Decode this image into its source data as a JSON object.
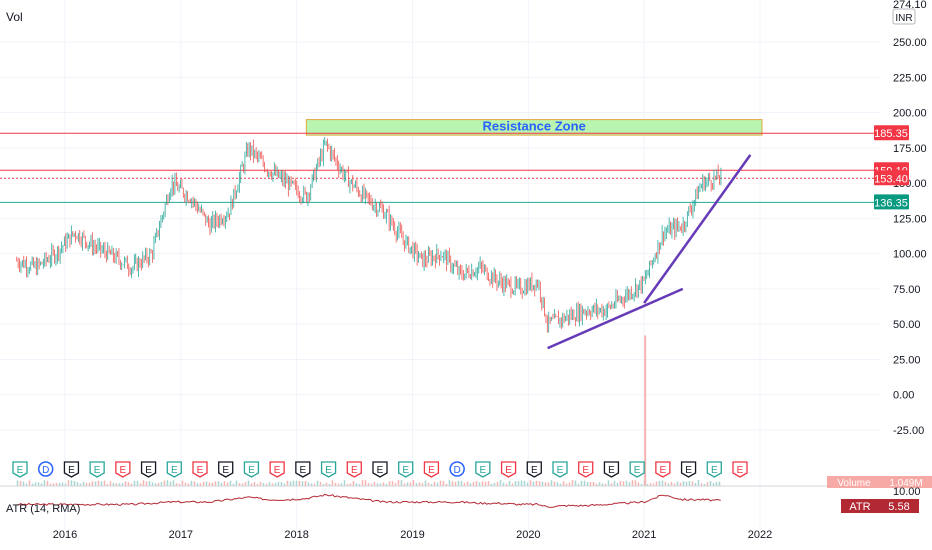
{
  "header": {
    "vol_label": "Vol"
  },
  "price_axis": {
    "top_label": "274.10",
    "currency": "INR",
    "ticks": [
      "250.00",
      "225.00",
      "200.00",
      "175.00",
      "150.00",
      "125.00",
      "100.00",
      "75.00",
      "50.00",
      "25.00",
      "0.00",
      "-25.00"
    ]
  },
  "levels": [
    {
      "name": "resistance-top",
      "value": 185.35,
      "label": "185.35",
      "color": "#f23645",
      "badge_color": "#f23645",
      "style": "solid"
    },
    {
      "name": "price-159",
      "value": 159.1,
      "label": "159.10",
      "color": "#f23645",
      "badge_color": "#f23645",
      "style": "solid"
    },
    {
      "name": "price-153",
      "value": 153.4,
      "label": "153.40",
      "color": "#f23645",
      "badge_color": "#f23645",
      "style": "dotted"
    },
    {
      "name": "support",
      "value": 136.35,
      "label": "136.35",
      "color": "#22ab94",
      "badge_color": "#089981",
      "style": "solid"
    }
  ],
  "resistance_zone": {
    "label": "Resistance Zone",
    "fill": "#b9f4b0",
    "border": "#e0a83c",
    "text_color": "#2962ff"
  },
  "volume": {
    "label": "Volume",
    "value": "1.049M"
  },
  "atr": {
    "label": "ATR (14, RMA)",
    "axis_value": "10.00",
    "badge_label": "ATR",
    "badge_value": "5.58",
    "color": "#b22833"
  },
  "time_axis": {
    "labels": [
      "2016",
      "2017",
      "2018",
      "2019",
      "2020",
      "2021",
      "2022"
    ]
  },
  "event_markers": [
    "E",
    "D",
    "E",
    "E",
    "E",
    "E",
    "E",
    "E",
    "E",
    "E",
    "E",
    "E",
    "E",
    "E",
    "E",
    "E",
    "E",
    "D",
    "E",
    "E",
    "E",
    "E",
    "E",
    "E",
    "E",
    "E",
    "E",
    "E",
    "E"
  ],
  "colors": {
    "up": "#26a69a",
    "down": "#ef5350",
    "trendline": "#673ab7",
    "grid": "#f0f3fa",
    "axis_text": "#131722"
  },
  "chart_data": {
    "type": "line",
    "title": "",
    "x": [
      "2015-08",
      "2015-10",
      "2015-12",
      "2016-02",
      "2016-04",
      "2016-06",
      "2016-08",
      "2016-10",
      "2016-12",
      "2017-02",
      "2017-04",
      "2017-06",
      "2017-08",
      "2017-10",
      "2017-12",
      "2018-02",
      "2018-04",
      "2018-06",
      "2018-08",
      "2018-10",
      "2018-12",
      "2019-02",
      "2019-04",
      "2019-06",
      "2019-08",
      "2019-10",
      "2019-12",
      "2020-02",
      "2020-03",
      "2020-05",
      "2020-07",
      "2020-09",
      "2020-11",
      "2021-01",
      "2021-03",
      "2021-05",
      "2021-07",
      "2021-09"
    ],
    "series": [
      {
        "values": [
          95,
          90,
          100,
          115,
          105,
          98,
          90,
          100,
          150,
          140,
          120,
          130,
          175,
          160,
          150,
          140,
          178,
          155,
          140,
          130,
          110,
          95,
          100,
          85,
          90,
          80,
          75,
          80,
          50,
          55,
          60,
          60,
          70,
          80,
          115,
          120,
          150,
          155
        ]
      }
    ],
    "ylim": [
      -30,
      275
    ],
    "levels": [
      185.35,
      159.1,
      153.4,
      136.35
    ],
    "atr_series": [
      4,
      4,
      4,
      4,
      4,
      4,
      4,
      4.5,
      5,
      5,
      5,
      6,
      7,
      6,
      6,
      6.5,
      8,
      7,
      6,
      5,
      5,
      5,
      5,
      5,
      4.5,
      4.5,
      4,
      4,
      3,
      3.5,
      3.5,
      4,
      4.5,
      5,
      8,
      6,
      6,
      5.58
    ]
  }
}
